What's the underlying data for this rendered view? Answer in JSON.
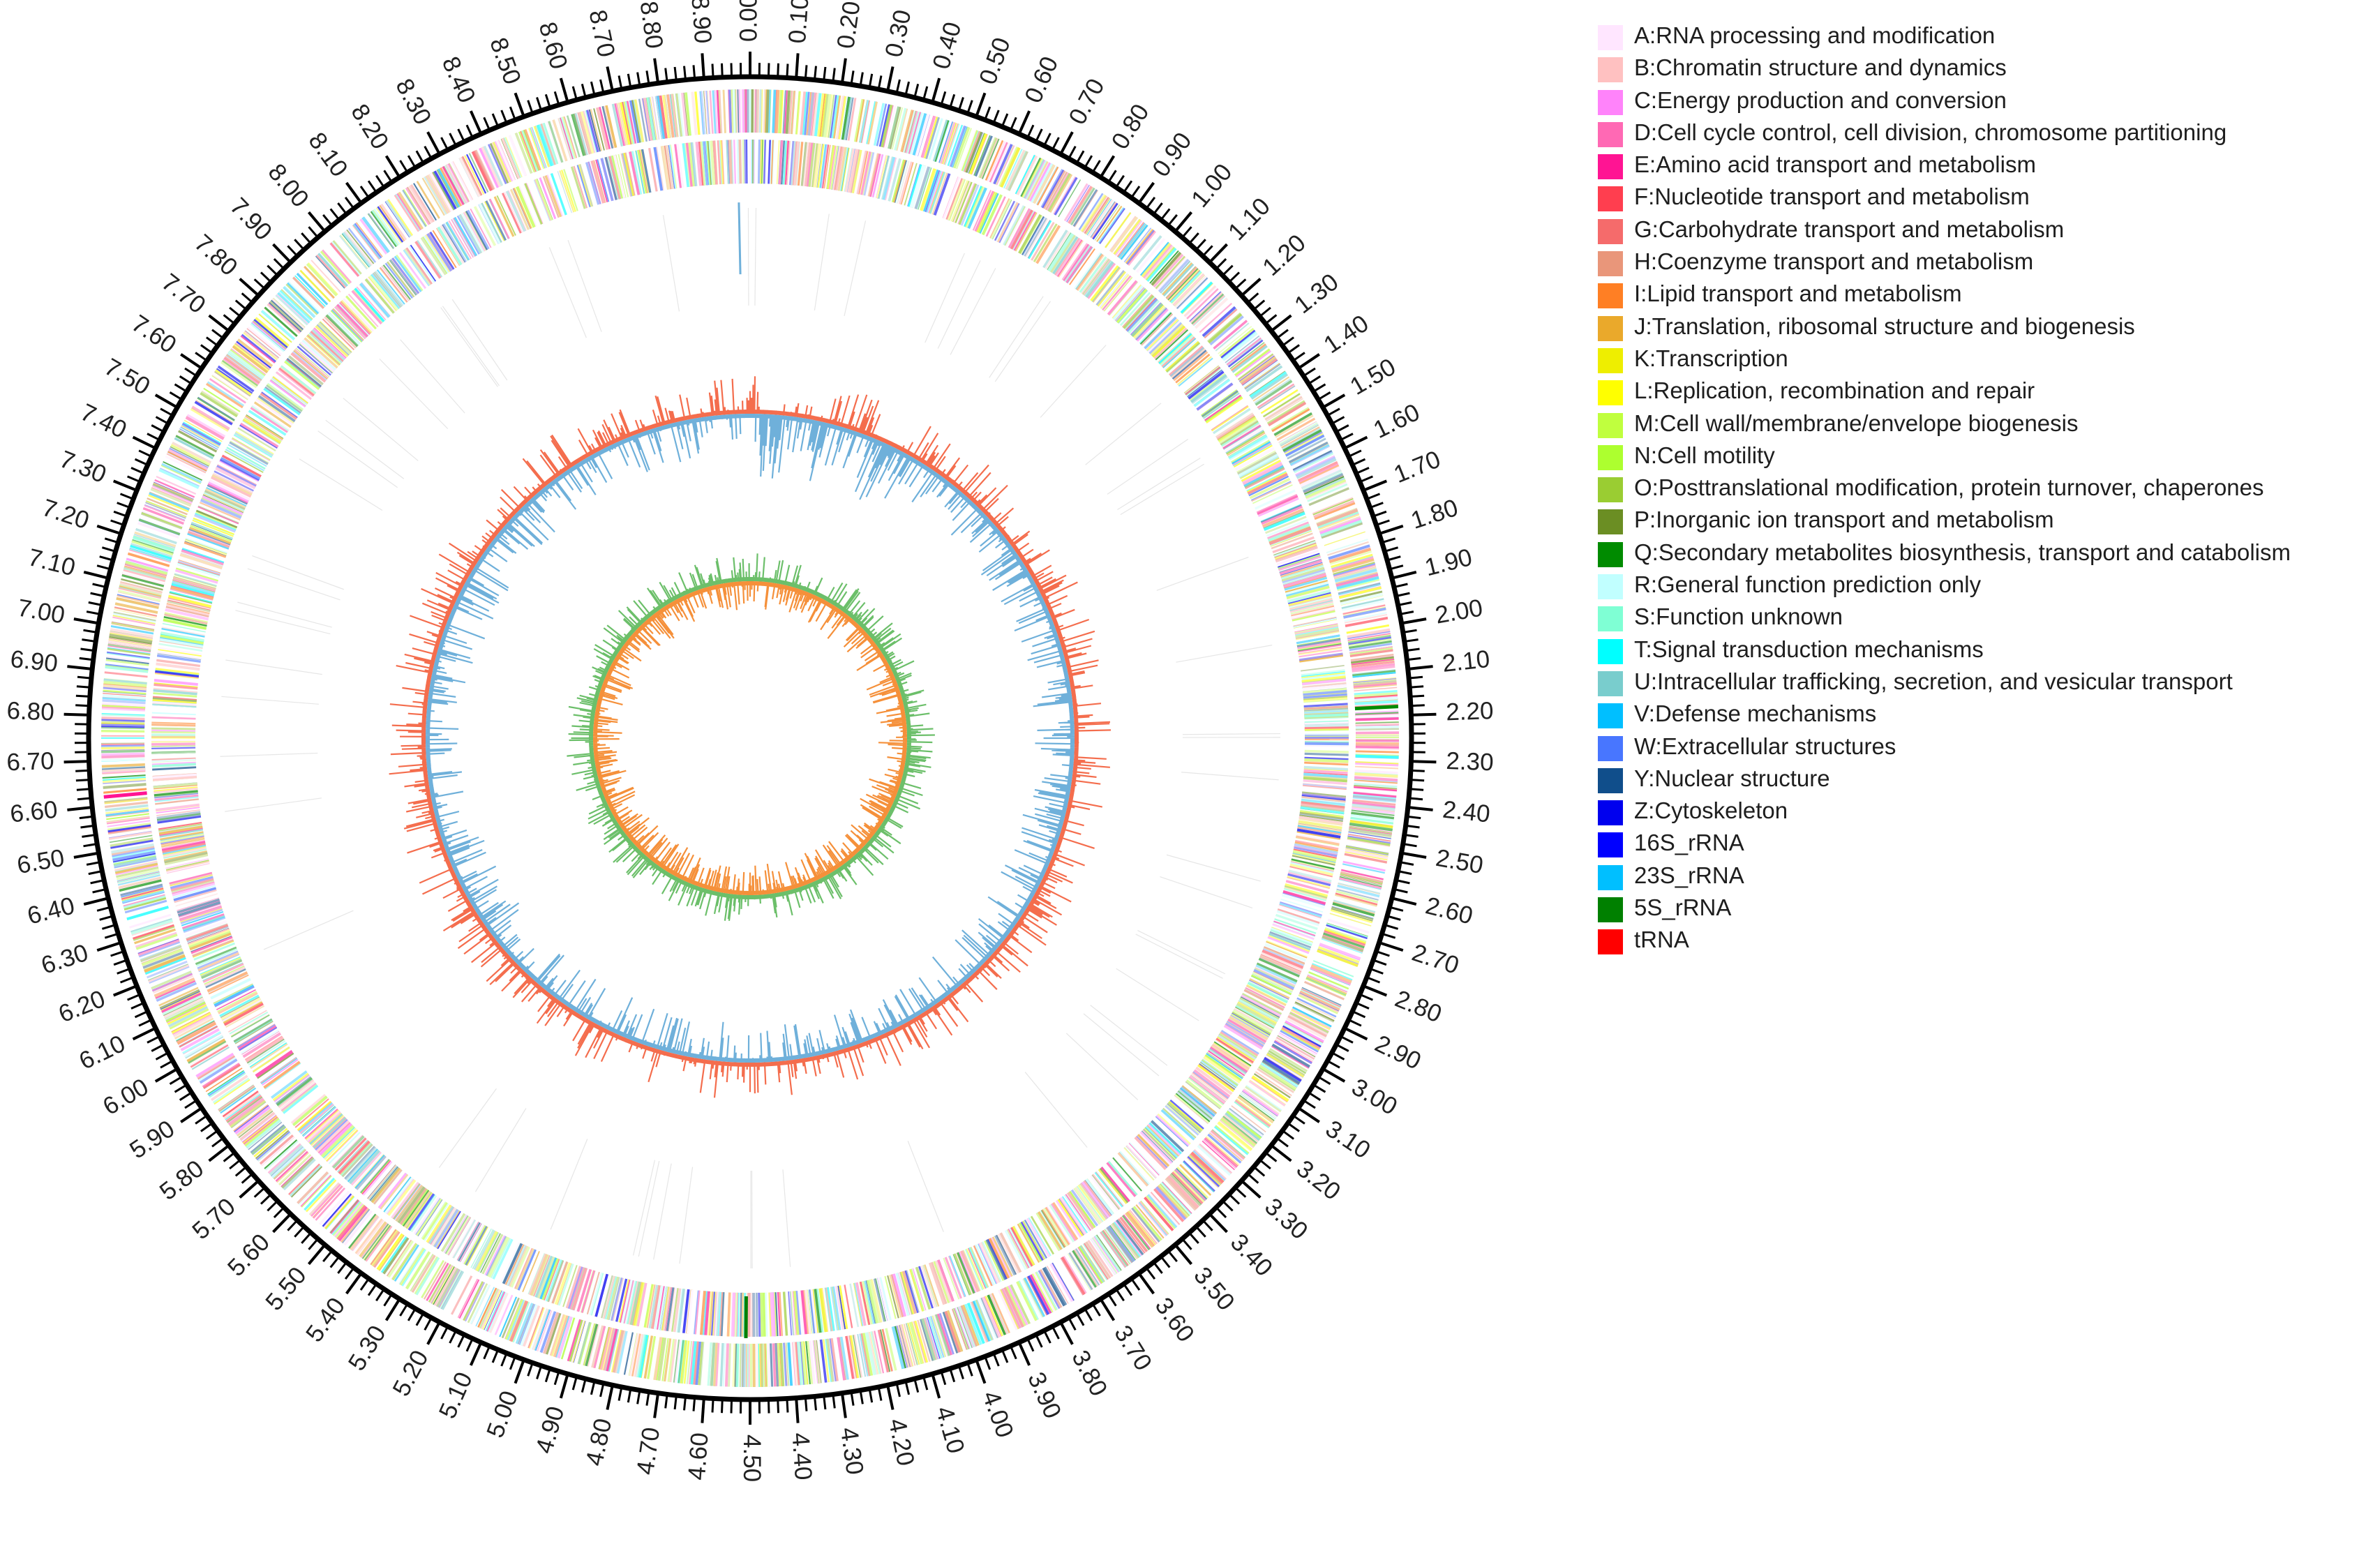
{
  "figure": {
    "kind": "circular genome map",
    "genome_scale_labels": [
      "0.00",
      "0.10",
      "0.20",
      "0.30",
      "0.40",
      "0.50",
      "0.60",
      "0.70",
      "0.80",
      "0.90",
      "1.00",
      "1.10",
      "1.20",
      "1.30",
      "1.40",
      "1.50",
      "1.60",
      "1.70",
      "1.80",
      "1.90",
      "2.00",
      "2.10",
      "2.20",
      "2.30",
      "2.40",
      "2.50",
      "2.60",
      "2.70",
      "2.80",
      "2.90",
      "3.00",
      "3.10",
      "3.20",
      "3.30",
      "3.40",
      "3.50",
      "3.60",
      "3.70",
      "3.80",
      "3.90",
      "4.00",
      "4.10",
      "4.20",
      "4.30",
      "4.40",
      "4.50",
      "4.60",
      "4.70",
      "4.80",
      "4.90",
      "5.00",
      "5.10",
      "5.20",
      "5.30",
      "5.40",
      "5.50",
      "5.60",
      "5.70",
      "5.80",
      "5.90",
      "6.00",
      "6.10",
      "6.20",
      "6.30",
      "6.40",
      "6.50",
      "6.60",
      "6.70",
      "6.80",
      "6.90",
      "7.00",
      "7.10",
      "7.20",
      "7.30",
      "7.40",
      "7.50",
      "7.60",
      "7.70",
      "7.80",
      "7.90",
      "8.00",
      "8.10",
      "8.20",
      "8.30",
      "8.40",
      "8.50",
      "8.60",
      "8.70",
      "8.80",
      "8.90"
    ],
    "track_colors": {
      "gc_content_outer": "#f46d4d",
      "gc_content_inner": "#6fb0da",
      "gc_skew_outer": "#6cbf6a",
      "gc_skew_inner": "#f5903a",
      "ruler": "#000000"
    }
  },
  "legend": {
    "items": [
      {
        "label": "A:RNA processing and modification",
        "color": "#ffe6ff"
      },
      {
        "label": "B:Chromatin structure and dynamics",
        "color": "#ffc1c1"
      },
      {
        "label": "C:Energy production and conversion",
        "color": "#ff83fa"
      },
      {
        "label": "D:Cell cycle control, cell division, chromosome partitioning",
        "color": "#ff69b4"
      },
      {
        "label": "E:Amino acid transport and metabolism",
        "color": "#ff1493"
      },
      {
        "label": "F:Nucleotide transport and metabolism",
        "color": "#ff3e4f"
      },
      {
        "label": "G:Carbohydrate transport and metabolism",
        "color": "#f56b6b"
      },
      {
        "label": "H:Coenzyme transport and metabolism",
        "color": "#e9967a"
      },
      {
        "label": "I:Lipid transport and metabolism",
        "color": "#ff7f24"
      },
      {
        "label": "J:Translation, ribosomal structure and biogenesis",
        "color": "#eaa92b"
      },
      {
        "label": "K:Transcription",
        "color": "#eeee00"
      },
      {
        "label": "L:Replication, recombination and repair",
        "color": "#ffff00"
      },
      {
        "label": "M:Cell wall/membrane/envelope biogenesis",
        "color": "#c0ff3e"
      },
      {
        "label": "N:Cell motility",
        "color": "#adff2f"
      },
      {
        "label": "O:Posttranslational modification, protein turnover, chaperones",
        "color": "#9acd32"
      },
      {
        "label": "P:Inorganic ion transport and metabolism",
        "color": "#6b8e23"
      },
      {
        "label": "Q:Secondary metabolites biosynthesis, transport and catabolism",
        "color": "#008b00"
      },
      {
        "label": "R:General function prediction only",
        "color": "#c1ffff"
      },
      {
        "label": "S:Function unknown",
        "color": "#7fffd4"
      },
      {
        "label": "T:Signal transduction mechanisms",
        "color": "#00ffff"
      },
      {
        "label": "U:Intracellular trafficking, secretion, and vesicular transport",
        "color": "#79cdcd"
      },
      {
        "label": "V:Defense mechanisms",
        "color": "#00bfff"
      },
      {
        "label": "W:Extracellular structures",
        "color": "#4876ff"
      },
      {
        "label": "Y:Nuclear structure",
        "color": "#104e8b"
      },
      {
        "label": "Z:Cytoskeleton",
        "color": "#0000ee"
      },
      {
        "label": "16S_rRNA",
        "color": "#0000ff"
      },
      {
        "label": "23S_rRNA",
        "color": "#00bfff"
      },
      {
        "label": "5S_rRNA",
        "color": "#008000"
      },
      {
        "label": "tRNA",
        "color": "#ff0000"
      }
    ]
  }
}
